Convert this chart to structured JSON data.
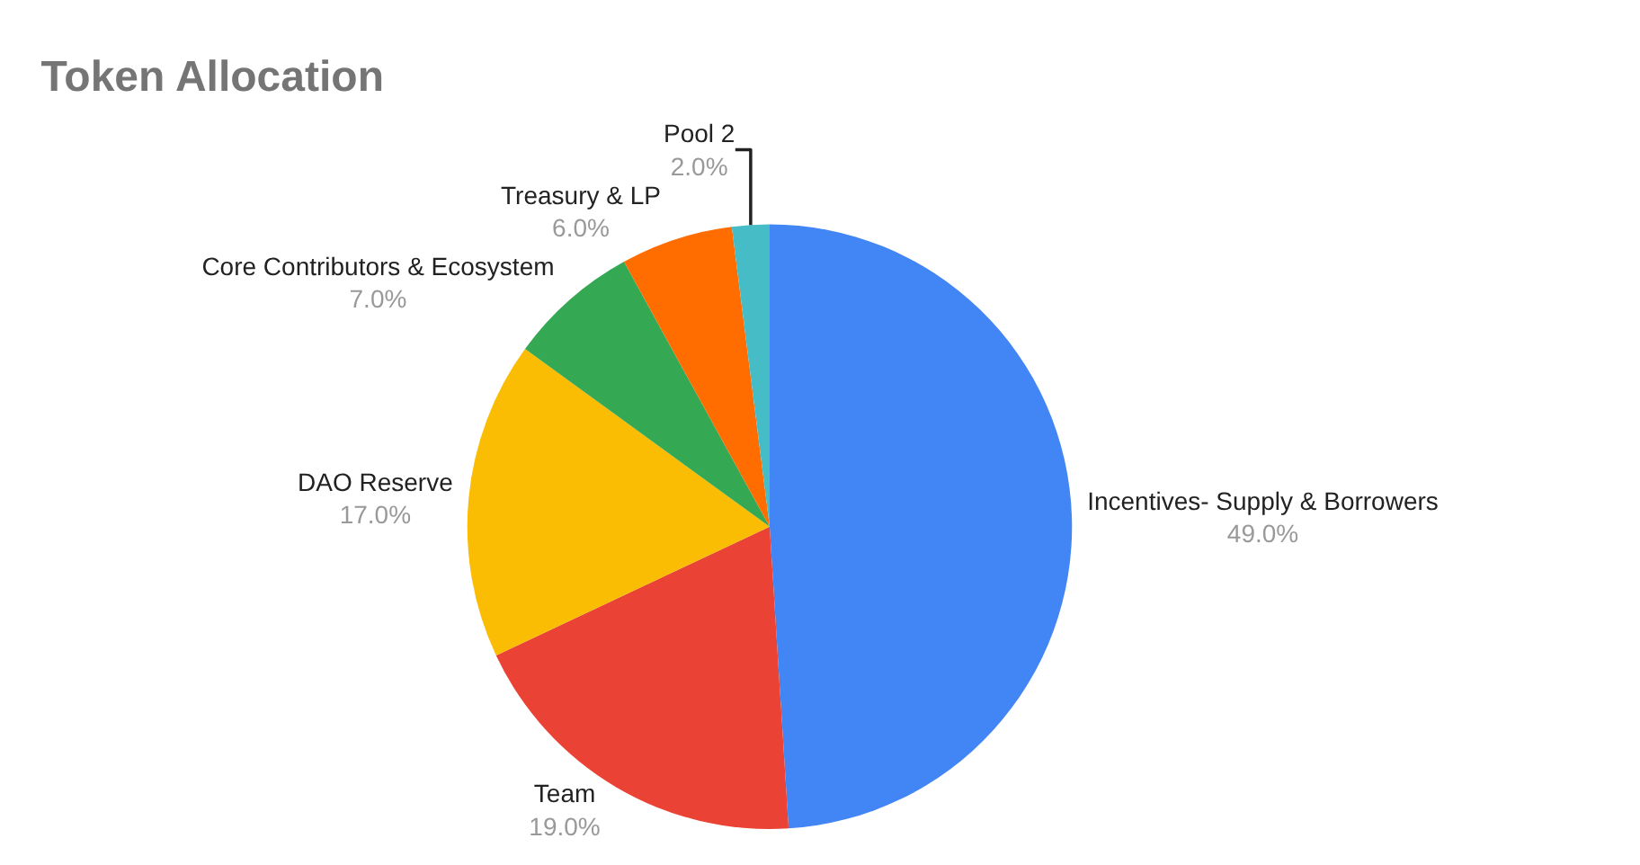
{
  "chart_data": {
    "type": "pie",
    "title": "Token Allocation",
    "categories": [
      "Incentives- Supply & Borrowers",
      "Team",
      "DAO Reserve",
      "Core Contributors & Ecosystem",
      "Treasury & LP",
      "Pool 2"
    ],
    "values": [
      49,
      19,
      17,
      7,
      6,
      2
    ],
    "value_labels": [
      "49.0%",
      "19.0%",
      "17.0%",
      "7.0%",
      "6.0%",
      "2.0%"
    ],
    "colors": [
      "#4285f4",
      "#ea4335",
      "#fbbc04",
      "#34a853",
      "#ff6d01",
      "#46bdc6"
    ],
    "legend": false
  }
}
